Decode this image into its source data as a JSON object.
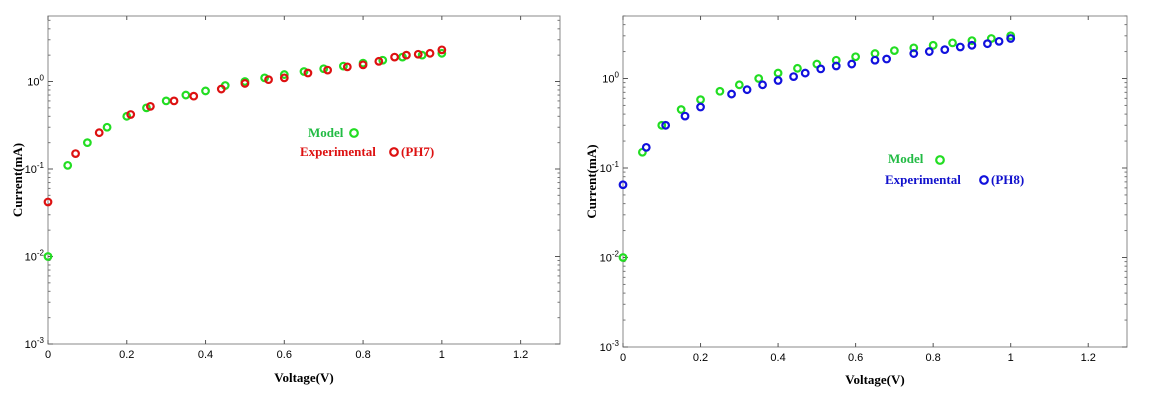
{
  "chart_data": [
    {
      "type": "scatter",
      "xlabel": "Voltage(V)",
      "ylabel": "Current(mA)",
      "xlim": [
        0,
        1.3
      ],
      "ylim": [
        0.001,
        5
      ],
      "yscale": "log",
      "xticks": [
        0,
        0.2,
        0.4,
        0.6,
        0.8,
        1,
        1.2
      ],
      "xtick_labels": [
        "0",
        "0.2",
        "0.4",
        "0.6",
        "0.8",
        "1",
        "1.2"
      ],
      "yticks": [
        0.001,
        0.01,
        0.1,
        1
      ],
      "ytick_labels": [
        {
          "base": "10",
          "exp": "-3"
        },
        {
          "base": "10",
          "exp": "-2"
        },
        {
          "base": "10",
          "exp": "-1"
        },
        {
          "base": "10",
          "exp": "0"
        }
      ],
      "grid": false,
      "legend_position": "center-right",
      "series": [
        {
          "name": "Model",
          "color": "#22dd22",
          "label_color": "#22bb44",
          "x": [
            0,
            0.05,
            0.1,
            0.15,
            0.2,
            0.25,
            0.3,
            0.35,
            0.4,
            0.45,
            0.5,
            0.55,
            0.6,
            0.65,
            0.7,
            0.75,
            0.8,
            0.85,
            0.9,
            0.95,
            1.0
          ],
          "y": [
            0.01,
            0.11,
            0.2,
            0.3,
            0.4,
            0.5,
            0.6,
            0.7,
            0.78,
            0.9,
            1.0,
            1.1,
            1.2,
            1.3,
            1.4,
            1.5,
            1.62,
            1.75,
            1.9,
            2.0,
            2.1
          ]
        },
        {
          "name": "Experimental",
          "legend_suffix": "(PH7)",
          "color": "#dd1111",
          "label_color": "#dd1111",
          "x": [
            0,
            0.07,
            0.13,
            0.21,
            0.26,
            0.32,
            0.37,
            0.44,
            0.5,
            0.56,
            0.6,
            0.66,
            0.71,
            0.76,
            0.8,
            0.84,
            0.88,
            0.91,
            0.94,
            0.97,
            1.0
          ],
          "y": [
            0.042,
            0.15,
            0.26,
            0.42,
            0.52,
            0.6,
            0.68,
            0.82,
            0.95,
            1.05,
            1.1,
            1.25,
            1.35,
            1.47,
            1.55,
            1.7,
            1.9,
            2.0,
            2.05,
            2.1,
            2.3
          ]
        }
      ]
    },
    {
      "type": "scatter",
      "xlabel": "Voltage(V)",
      "ylabel": "Current(mA)",
      "xlim": [
        0,
        1.3
      ],
      "ylim": [
        0.001,
        5
      ],
      "yscale": "log",
      "xticks": [
        0,
        0.2,
        0.4,
        0.6,
        0.8,
        1,
        1.2
      ],
      "xtick_labels": [
        "0",
        "0.2",
        "0.4",
        "0.6",
        "0.8",
        "1",
        "1.2"
      ],
      "yticks": [
        0.001,
        0.01,
        0.1,
        1
      ],
      "ytick_labels": [
        {
          "base": "10",
          "exp": "-3"
        },
        {
          "base": "10",
          "exp": "-2"
        },
        {
          "base": "10",
          "exp": "-1"
        },
        {
          "base": "10",
          "exp": "0"
        }
      ],
      "grid": false,
      "legend_position": "center-right",
      "series": [
        {
          "name": "Model",
          "color": "#22dd22",
          "label_color": "#22bb44",
          "x": [
            0,
            0.05,
            0.1,
            0.15,
            0.2,
            0.25,
            0.3,
            0.35,
            0.4,
            0.45,
            0.5,
            0.55,
            0.6,
            0.65,
            0.7,
            0.75,
            0.8,
            0.85,
            0.9,
            0.95,
            1.0
          ],
          "y": [
            0.01,
            0.15,
            0.3,
            0.45,
            0.58,
            0.72,
            0.85,
            1.0,
            1.15,
            1.3,
            1.45,
            1.6,
            1.75,
            1.9,
            2.05,
            2.2,
            2.35,
            2.5,
            2.65,
            2.8,
            3.0
          ]
        },
        {
          "name": "Experimental",
          "legend_suffix": "(PH8)",
          "color": "#1111dd",
          "label_color": "#1111cc",
          "x": [
            0,
            0.06,
            0.11,
            0.16,
            0.2,
            0.28,
            0.32,
            0.36,
            0.4,
            0.44,
            0.47,
            0.51,
            0.55,
            0.59,
            0.65,
            0.68,
            0.75,
            0.79,
            0.83,
            0.87,
            0.9,
            0.94,
            0.97,
            1.0
          ],
          "y": [
            0.065,
            0.17,
            0.3,
            0.38,
            0.48,
            0.67,
            0.75,
            0.85,
            0.95,
            1.05,
            1.15,
            1.28,
            1.38,
            1.45,
            1.6,
            1.65,
            1.9,
            2.0,
            2.1,
            2.25,
            2.35,
            2.45,
            2.6,
            2.8
          ]
        }
      ]
    }
  ]
}
